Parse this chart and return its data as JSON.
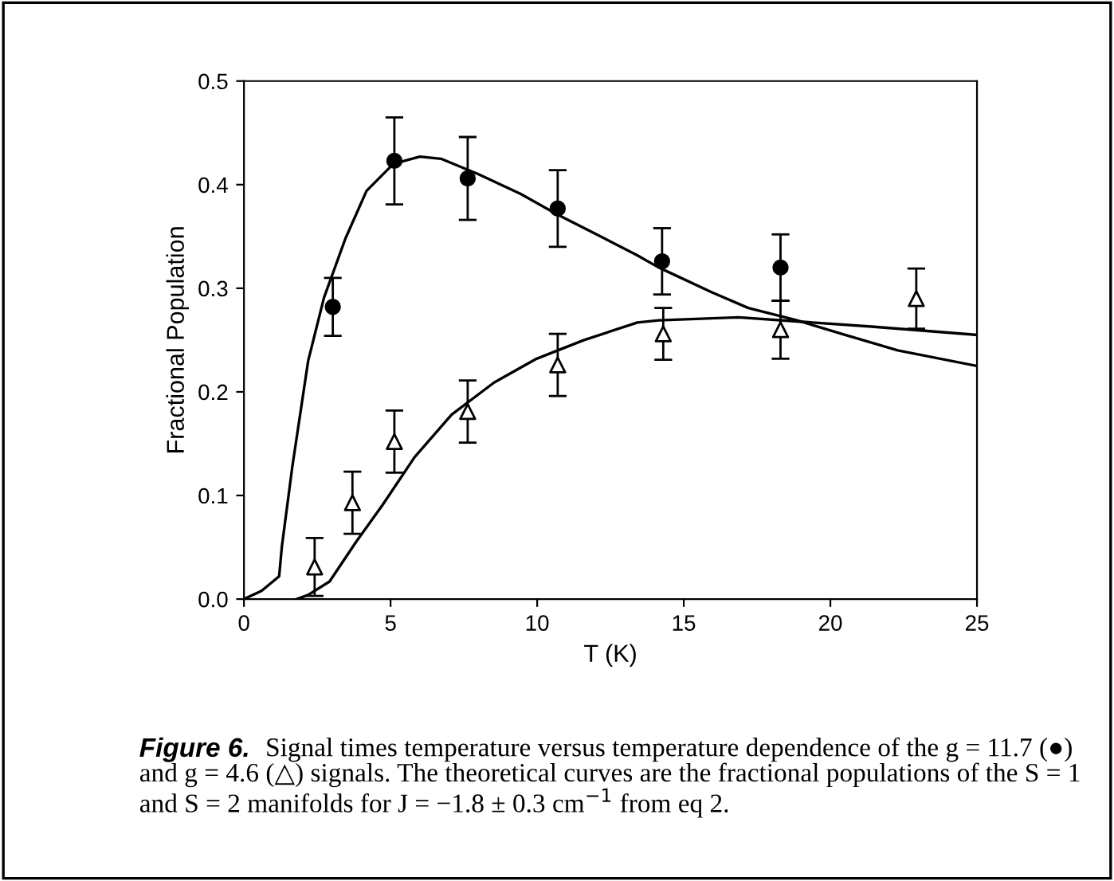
{
  "chart_data": {
    "type": "scatter",
    "title": "Figure 6.",
    "xlabel": "T (K)",
    "ylabel": "Fractional Population",
    "annotations": [
      "Signal times temperature versus temperature dependence of the g = 11.7 (●) and g = 4.6 (△) signals. The theoretical curves are the fractional populations of the S = 1 and S = 2 manifolds for J = −1.8 ± 0.3 cm$^{−1}$ from eq 2."
    ],
    "xlim": [
      0,
      25
    ],
    "xticks": [
      0,
      5,
      10,
      15,
      20,
      25
    ],
    "ylim": [
      0,
      0.5
    ],
    "yticks": [
      {
        "value": 0,
        "label": "0.0"
      },
      0.1,
      0.2,
      0.3,
      0.4,
      0.5
    ],
    "grid": false,
    "legend": false,
    "series": [
      {
        "marker": "circle",
        "color": "#000000",
        "x": [
          3.03,
          5.13,
          7.63,
          10.7,
          14.26,
          18.3
        ],
        "values": [
          0.282,
          0.423,
          0.406,
          0.377,
          0.326,
          0.32
        ],
        "errors": [
          0.028,
          0.042,
          0.04,
          0.037,
          0.032,
          0.032
        ]
      },
      {
        "marker": "triangle",
        "color": "#000000",
        "x": [
          2.41,
          3.7,
          5.13,
          7.63,
          10.7,
          14.3,
          18.3,
          22.93
        ],
        "values": [
          0.031,
          0.093,
          0.152,
          0.181,
          0.226,
          0.256,
          0.26,
          0.29
        ],
        "errors": [
          0.028,
          0.03,
          0.03,
          0.03,
          0.03,
          0.025,
          0.028,
          0.029
        ]
      },
      {
        "type": "line",
        "marker": "none",
        "color": "#000000",
        "x": [
          0,
          0.6,
          1.2,
          1.29,
          1.65,
          2.19,
          2.73,
          3.46,
          4.18,
          5.09,
          6.0,
          6.72,
          8.0,
          9.44,
          10.7,
          12.16,
          13.4,
          14.15,
          15.96,
          17.2,
          18.86,
          20.5,
          22.3,
          25
        ],
        "values": [
          0,
          0.008,
          0.022,
          0.05,
          0.128,
          0.23,
          0.291,
          0.348,
          0.394,
          0.42,
          0.427,
          0.425,
          0.41,
          0.391,
          0.371,
          0.35,
          0.332,
          0.32,
          0.296,
          0.281,
          0.269,
          0.255,
          0.24,
          0.225
        ]
      },
      {
        "type": "line",
        "marker": "none",
        "color": "#000000",
        "x": [
          1.8,
          2.19,
          2.92,
          3.82,
          4.73,
          5.82,
          7.08,
          8.53,
          9.98,
          11.6,
          13.42,
          14.15,
          16.86,
          18.86,
          21.4,
          25
        ],
        "values": [
          0,
          0.004,
          0.017,
          0.055,
          0.091,
          0.137,
          0.178,
          0.209,
          0.232,
          0.25,
          0.267,
          0.269,
          0.272,
          0.268,
          0.263,
          0.255
        ]
      }
    ]
  }
}
